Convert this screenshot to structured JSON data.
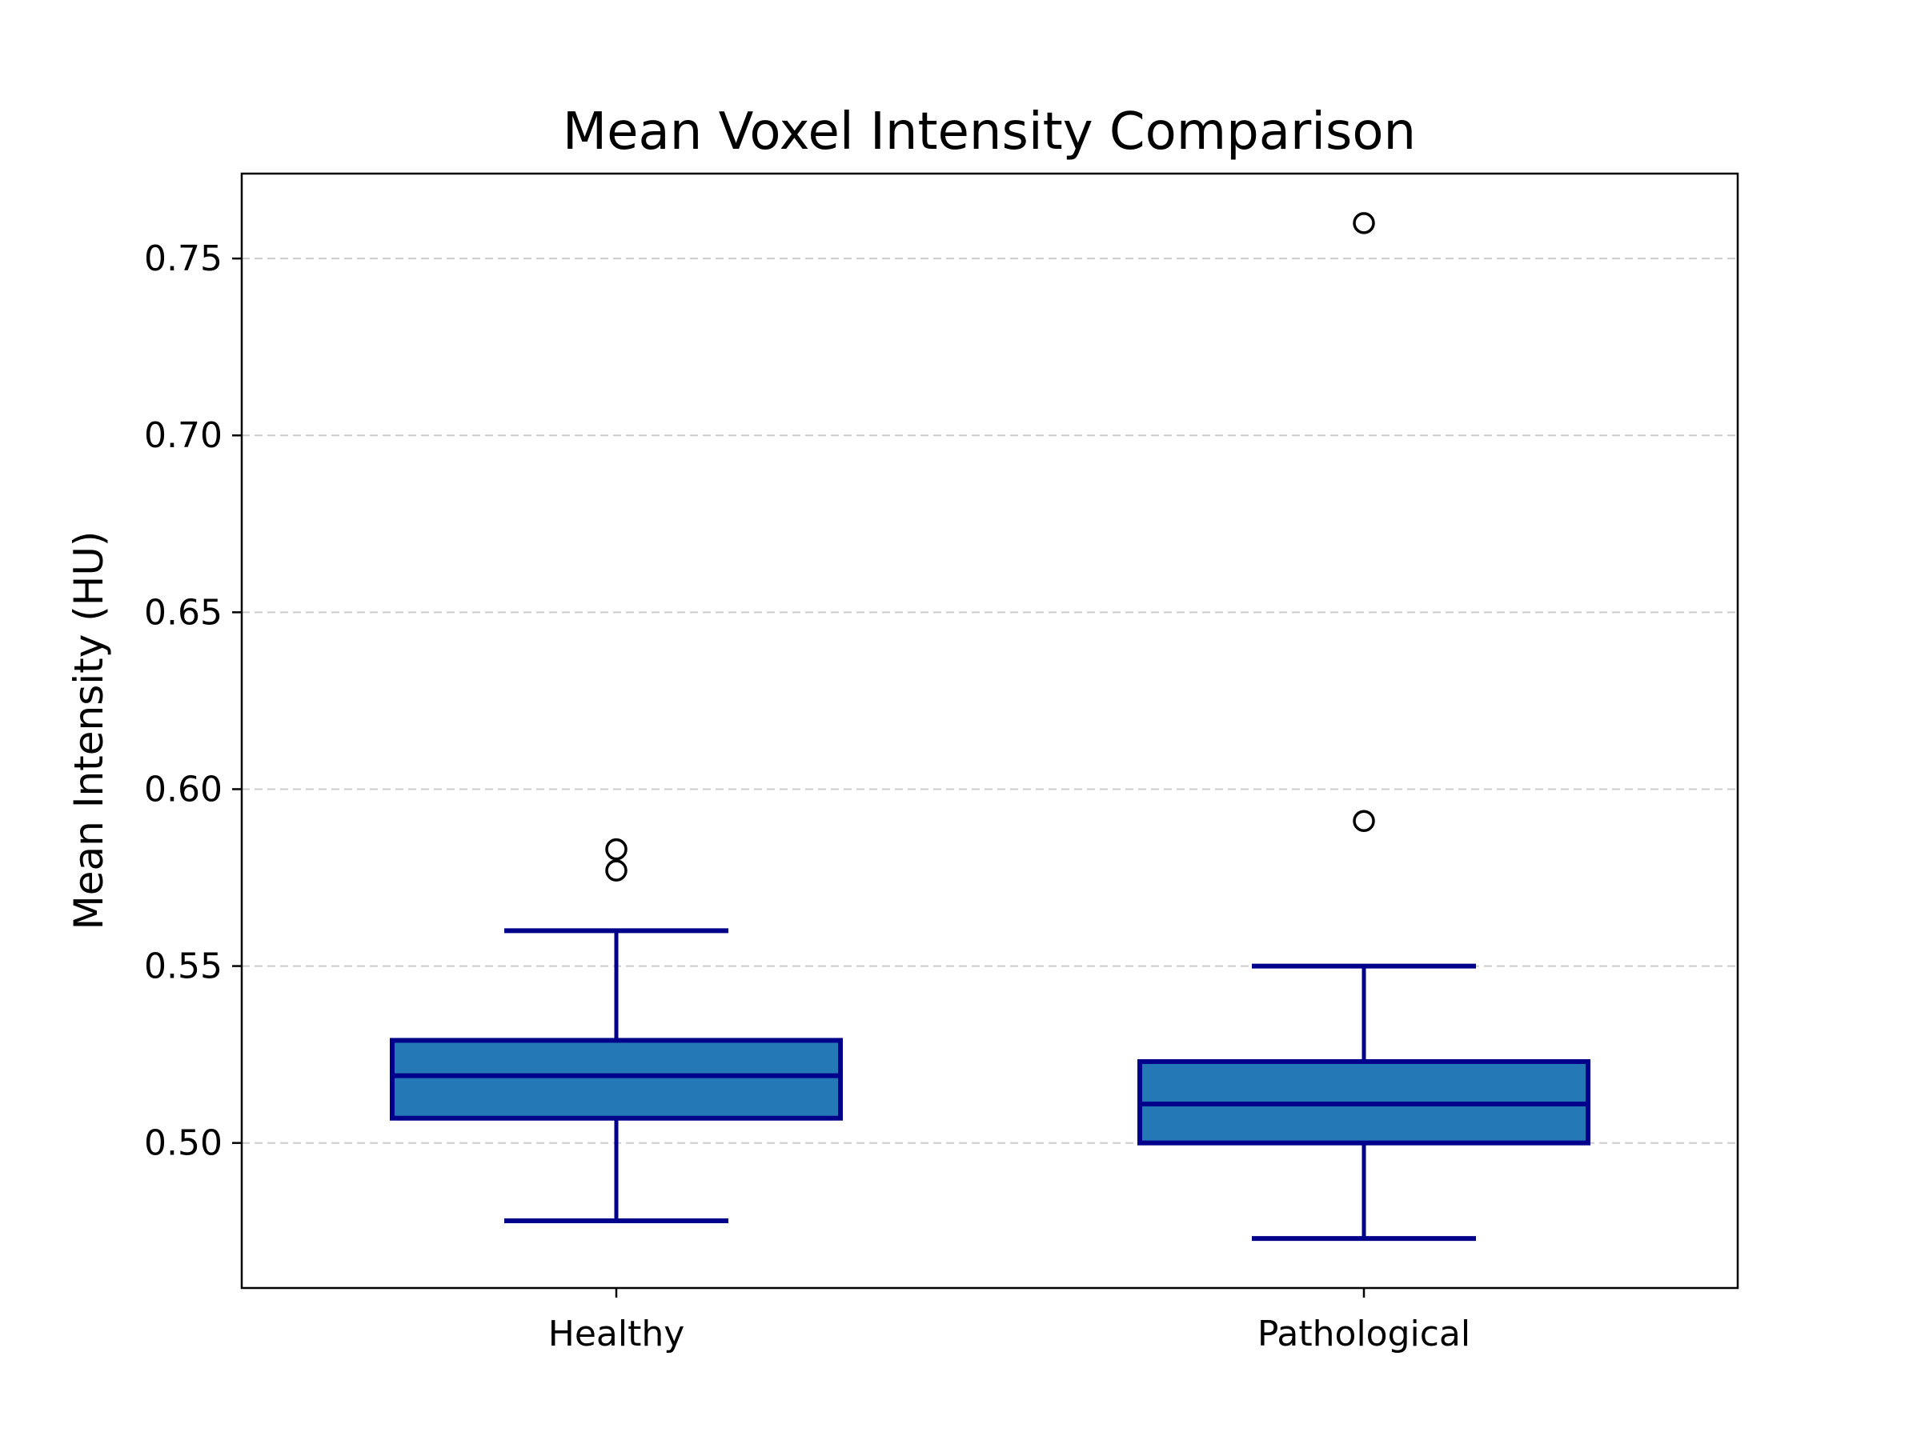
{
  "chart_data": {
    "type": "boxplot",
    "title": "Mean Voxel Intensity Comparison",
    "xlabel": "",
    "ylabel": "Mean Intensity (HU)",
    "categories": [
      "Healthy",
      "Pathological"
    ],
    "ylim": [
      0.459,
      0.774
    ],
    "yticks": [
      0.5,
      0.55,
      0.6,
      0.65,
      0.7,
      0.75
    ],
    "ytick_labels": [
      "0.50",
      "0.55",
      "0.60",
      "0.65",
      "0.70",
      "0.75"
    ],
    "grid": "y-dashed",
    "boxes": [
      {
        "category": "Healthy",
        "whisker_low": 0.478,
        "q1": 0.507,
        "median": 0.519,
        "q3": 0.529,
        "whisker_high": 0.56,
        "outliers": [
          0.577,
          0.583
        ]
      },
      {
        "category": "Pathological",
        "whisker_low": 0.473,
        "q1": 0.5,
        "median": 0.511,
        "q3": 0.523,
        "whisker_high": 0.55,
        "outliers": [
          0.591,
          0.76
        ]
      }
    ],
    "colors": {
      "box_fill": "#2478b5",
      "box_edge": "#00008b",
      "outlier_edge": "#000000",
      "grid": "#cccccc"
    }
  }
}
